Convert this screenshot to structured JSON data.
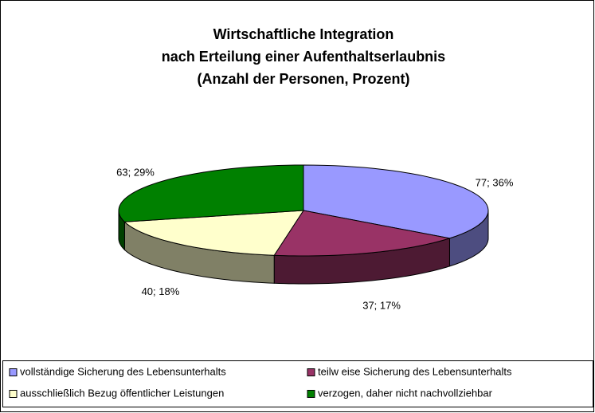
{
  "chart_data": {
    "type": "pie3d",
    "title": [
      "Wirtschaftliche Integration",
      "nach Erteilung einer Aufenthaltserlaubnis",
      "(Anzahl der Personen, Prozent)"
    ],
    "categories": [
      "vollständige Sicherung des Lebensunterhalts",
      "teilw eise Sicherung des Lebensunterhalts",
      "ausschließlich Bezug öffentlicher Leistungen",
      "verzogen, daher nicht nachvollziehbar"
    ],
    "values": [
      77,
      37,
      40,
      63
    ],
    "value_labels": [
      "77; 36%",
      "37; 17%",
      "40; 18%",
      "63; 29%"
    ],
    "colors": [
      "#9999ff",
      "#993366",
      "#ffffcc",
      "#008000"
    ],
    "legend": "bottom"
  }
}
